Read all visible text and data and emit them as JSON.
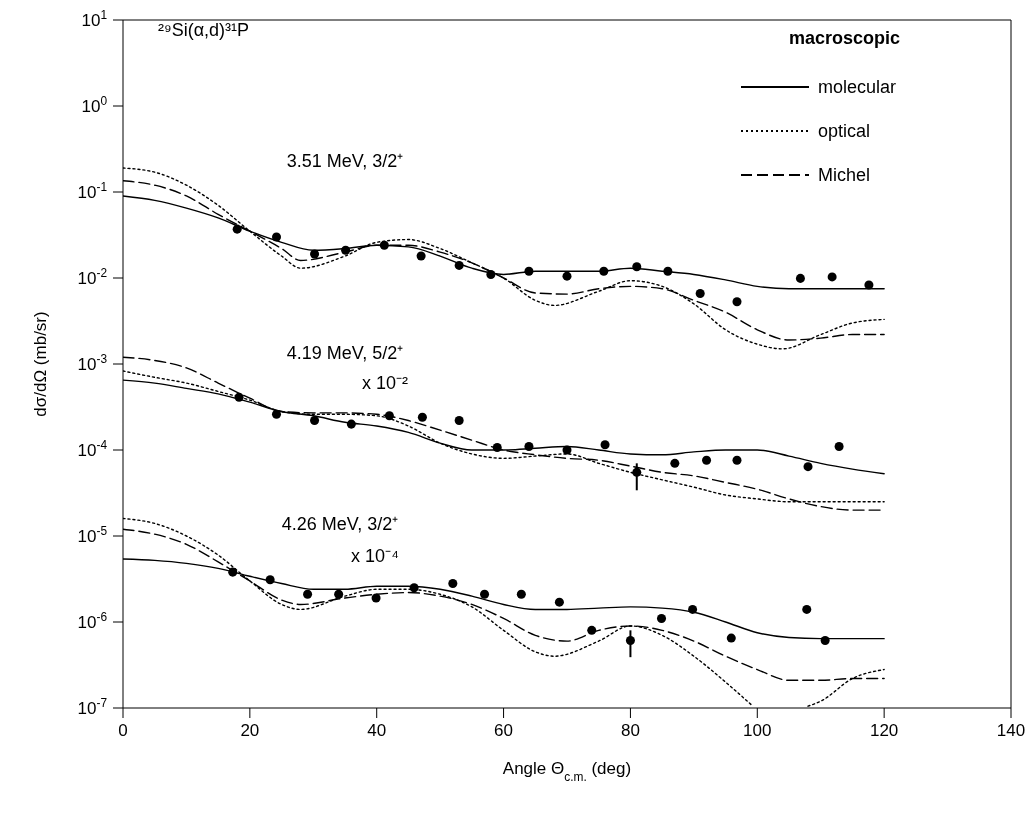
{
  "chart_data": {
    "type": "line",
    "xlabel": "Angle Θ$_{c.m.}$ (deg)",
    "ylabel": "dσ/dΩ (mb/sr)",
    "legend_title": "macroscopic",
    "legend": "top right",
    "log": "y",
    "grid": false,
    "marker": "none",
    "xlim": [
      0,
      140
    ],
    "xticks": [
      0,
      20,
      40,
      60,
      80,
      100,
      120,
      140
    ],
    "ylim": [
      1e-07,
      10
    ],
    "yticks": [
      {
        "value": 1e-07,
        "label": "10$^{-7}$"
      },
      {
        "value": 1e-06,
        "label": "10$^{-6}$"
      },
      {
        "value": 1e-05,
        "label": "10$^{-5}$"
      },
      {
        "value": 0.0001,
        "label": "10$^{-4}$"
      },
      {
        "value": 0.001,
        "label": "10$^{-3}$"
      },
      {
        "value": 0.01,
        "label": "10$^{-2}$"
      },
      {
        "value": 0.1,
        "label": "10$^{-1}$"
      },
      {
        "value": 1,
        "label": "10$^{0}$"
      },
      {
        "value": 10,
        "label": "10$^{1}$"
      }
    ],
    "annotations": [
      "²⁹Si(α,d)³¹P",
      "3.51 MeV, 3/2⁺",
      "4.19 MeV, 5/2⁺",
      "x 10⁻²",
      "4.26 MeV, 3/2⁺",
      "x 10⁻⁴"
    ],
    "series": [
      {
        "name": "molecular",
        "line_style": "solid",
        "color": "#000000",
        "x": [
          0,
          5,
          10,
          15,
          20,
          25,
          30,
          35,
          40,
          45,
          50,
          55,
          60,
          65,
          70,
          75,
          80,
          85,
          90,
          95,
          100,
          105,
          110,
          115,
          120
        ],
        "values": [
          0.09,
          0.08,
          0.065,
          0.05,
          0.035,
          0.026,
          0.021,
          0.022,
          0.024,
          0.023,
          0.018,
          0.013,
          0.011,
          0.012,
          0.012,
          0.012,
          0.013,
          0.012,
          0.011,
          0.0095,
          0.008,
          0.0075,
          0.0075,
          0.0075,
          0.0075
        ]
      },
      {
        "name": "optical",
        "line_style": "dotted",
        "color": "#000000",
        "x": [
          0,
          5,
          10,
          15,
          20,
          25,
          28,
          35,
          40,
          45,
          50,
          55,
          60,
          65,
          68,
          75,
          80,
          85,
          90,
          95,
          100,
          104,
          110,
          115,
          120
        ],
        "values": [
          0.19,
          0.17,
          0.12,
          0.07,
          0.035,
          0.018,
          0.013,
          0.018,
          0.026,
          0.028,
          0.022,
          0.015,
          0.01,
          0.0055,
          0.0048,
          0.007,
          0.0093,
          0.008,
          0.005,
          0.0025,
          0.0017,
          0.0015,
          0.0022,
          0.003,
          0.0033
        ]
      },
      {
        "name": "Michel",
        "line_style": "dashed",
        "color": "#000000",
        "x": [
          0,
          5,
          10,
          15,
          20,
          25,
          28,
          35,
          40,
          45,
          50,
          55,
          60,
          65,
          70,
          75,
          80,
          85,
          90,
          95,
          100,
          105,
          110,
          115,
          120
        ],
        "values": [
          0.135,
          0.12,
          0.09,
          0.055,
          0.035,
          0.022,
          0.016,
          0.02,
          0.024,
          0.024,
          0.02,
          0.015,
          0.01,
          0.0067,
          0.0065,
          0.0075,
          0.008,
          0.0075,
          0.0055,
          0.004,
          0.0025,
          0.0019,
          0.002,
          0.0022,
          0.0022
        ]
      },
      {
        "line_style": "solid",
        "color": "#000000",
        "x": [
          0,
          5,
          10,
          15,
          20,
          25,
          30,
          35,
          40,
          45,
          50,
          55,
          60,
          65,
          70,
          75,
          80,
          85,
          90,
          95,
          100,
          105,
          110,
          115,
          120
        ],
        "values": [
          0.00065,
          0.0006,
          0.00052,
          0.00045,
          0.00036,
          0.00028,
          0.00025,
          0.00021,
          0.00019,
          0.00016,
          0.00012,
          0.0001,
          0.0001,
          0.000105,
          0.00011,
          0.0001,
          9e-05,
          8.8e-05,
          9.5e-05,
          0.0001,
          0.0001,
          8.5e-05,
          7e-05,
          6e-05,
          5.3e-05
        ]
      },
      {
        "line_style": "dotted",
        "color": "#000000",
        "x": [
          0,
          5,
          10,
          15,
          20,
          25,
          30,
          35,
          40,
          45,
          50,
          55,
          60,
          65,
          70,
          75,
          80,
          85,
          90,
          95,
          100,
          105,
          110,
          115,
          120
        ],
        "values": [
          0.00083,
          0.0007,
          0.0006,
          0.00048,
          0.00038,
          0.00028,
          0.00026,
          0.00026,
          0.00025,
          0.00019,
          0.00012,
          9e-05,
          8e-05,
          8.5e-05,
          9e-05,
          7e-05,
          5.5e-05,
          4.5e-05,
          3.7e-05,
          3e-05,
          2.7e-05,
          2.5e-05,
          2.5e-05,
          2.5e-05,
          2.5e-05
        ]
      },
      {
        "line_style": "dashed",
        "color": "#000000",
        "x": [
          0,
          5,
          10,
          15,
          20,
          25,
          30,
          35,
          40,
          45,
          50,
          55,
          60,
          65,
          70,
          75,
          80,
          85,
          90,
          95,
          100,
          105,
          110,
          115,
          120
        ],
        "values": [
          0.0012,
          0.0011,
          0.0009,
          0.0006,
          0.0004,
          0.00028,
          0.00027,
          0.00027,
          0.00026,
          0.00022,
          0.00017,
          0.00013,
          0.0001,
          8.8e-05,
          8e-05,
          7.6e-05,
          6.5e-05,
          5.5e-05,
          5e-05,
          4.2e-05,
          3.5e-05,
          2.7e-05,
          2.2e-05,
          2e-05,
          2e-05
        ]
      },
      {
        "line_style": "solid",
        "color": "#000000",
        "x": [
          0,
          5,
          10,
          15,
          20,
          25,
          30,
          35,
          40,
          45,
          50,
          55,
          60,
          65,
          70,
          75,
          80,
          85,
          90,
          95,
          100,
          105,
          110,
          115,
          120
        ],
        "values": [
          5.4e-06,
          5.2e-06,
          4.8e-06,
          4.2e-06,
          3.4e-06,
          2.8e-06,
          2.4e-06,
          2.4e-06,
          2.6e-06,
          2.6e-06,
          2.4e-06,
          2e-06,
          1.6e-06,
          1.4e-06,
          1.4e-06,
          1.45e-06,
          1.5e-06,
          1.45e-06,
          1.3e-06,
          1e-06,
          7.5e-07,
          6.6e-07,
          6.4e-07,
          6.4e-07,
          6.4e-07
        ]
      },
      {
        "line_style": "dotted",
        "color": "#000000",
        "x": [
          0,
          5,
          10,
          15,
          20,
          25,
          28,
          35,
          40,
          45,
          50,
          55,
          60,
          65,
          68,
          75,
          80,
          85,
          90,
          95,
          99,
          104,
          108,
          110,
          115,
          120
        ],
        "values": [
          1.6e-05,
          1.4e-05,
          1e-05,
          6e-06,
          3e-06,
          1.6e-06,
          1.4e-06,
          2e-06,
          2.4e-06,
          2.4e-06,
          2.1e-06,
          1.5e-06,
          8e-07,
          4.5e-07,
          4e-07,
          6e-07,
          9e-07,
          7e-07,
          4e-07,
          2e-07,
          1.1e-07,
          null,
          1.05e-07,
          1.2e-07,
          2.2e-07,
          2.8e-07
        ]
      },
      {
        "line_style": "dashed",
        "color": "#000000",
        "x": [
          0,
          5,
          10,
          15,
          20,
          25,
          28,
          35,
          40,
          45,
          50,
          55,
          60,
          65,
          70,
          75,
          80,
          85,
          90,
          95,
          100,
          105,
          110,
          115,
          120
        ],
        "values": [
          1.2e-05,
          1.05e-05,
          8e-06,
          5e-06,
          3e-06,
          1.8e-06,
          1.6e-06,
          1.9e-06,
          2.1e-06,
          2.2e-06,
          2e-06,
          1.6e-06,
          1.1e-06,
          7e-07,
          6e-07,
          8e-07,
          9e-07,
          8e-07,
          6e-07,
          4e-07,
          2.8e-07,
          2.1e-07,
          2.1e-07,
          2.2e-07,
          2.2e-07
        ]
      },
      {
        "type": "scatter",
        "marker": "circle",
        "color": "#000000",
        "x": [
          18,
          24.2,
          30.2,
          35.1,
          41.2,
          47,
          53,
          58,
          64,
          70,
          75.8,
          81,
          85.9,
          91,
          96.8,
          106.8,
          111.8,
          117.6
        ],
        "values": [
          0.037,
          0.03,
          0.019,
          0.021,
          0.024,
          0.018,
          0.014,
          0.011,
          0.012,
          0.0105,
          0.012,
          0.0135,
          0.012,
          0.0066,
          0.0053,
          0.0099,
          0.0103,
          0.0083
        ]
      },
      {
        "type": "scatter",
        "marker": "circle",
        "color": "#000000",
        "x": [
          18.3,
          24.2,
          30.2,
          36,
          42,
          47.2,
          53,
          59,
          64,
          70,
          76,
          81,
          87,
          92,
          96.8,
          108,
          112.9
        ],
        "values": [
          0.00041,
          0.00026,
          0.00022,
          0.0002,
          0.00025,
          0.00024,
          0.00022,
          0.000107,
          0.00011,
          0.0001,
          0.000115,
          5.5e-05,
          7e-05,
          7.6e-05,
          7.6e-05,
          6.4e-05,
          0.00011
        ],
        "errors": [
          null,
          null,
          null,
          null,
          null,
          null,
          null,
          null,
          null,
          null,
          null,
          [
            3.4e-05,
            7e-05
          ],
          null,
          null,
          null,
          null,
          null
        ]
      },
      {
        "type": "scatter",
        "marker": "circle",
        "color": "#000000",
        "x": [
          17.3,
          23.2,
          29.1,
          34,
          39.9,
          45.9,
          52,
          57,
          62.8,
          68.8,
          73.9,
          80,
          84.9,
          89.8,
          95.9,
          107.8,
          110.7
        ],
        "values": [
          3.8e-06,
          3.1e-06,
          2.1e-06,
          2.1e-06,
          1.9e-06,
          2.5e-06,
          2.8e-06,
          2.1e-06,
          2.1e-06,
          1.7e-06,
          8e-07,
          6.1e-07,
          1.1e-06,
          1.4e-06,
          6.5e-07,
          1.4e-06,
          6.1e-07
        ],
        "errors": [
          null,
          null,
          null,
          null,
          null,
          null,
          null,
          null,
          null,
          null,
          null,
          [
            3.9e-07,
            8e-07
          ],
          null,
          null,
          null,
          null,
          null
        ]
      }
    ]
  }
}
